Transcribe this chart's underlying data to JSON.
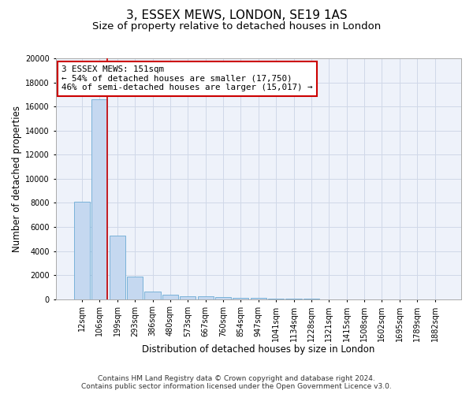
{
  "title_line1": "3, ESSEX MEWS, LONDON, SE19 1AS",
  "title_line2": "Size of property relative to detached houses in London",
  "xlabel": "Distribution of detached houses by size in London",
  "ylabel": "Number of detached properties",
  "bar_color": "#c5d8f0",
  "bar_edge_color": "#6aaad4",
  "categories": [
    "12sqm",
    "106sqm",
    "199sqm",
    "293sqm",
    "386sqm",
    "480sqm",
    "573sqm",
    "667sqm",
    "760sqm",
    "854sqm",
    "947sqm",
    "1041sqm",
    "1134sqm",
    "1228sqm",
    "1321sqm",
    "1415sqm",
    "1508sqm",
    "1602sqm",
    "1695sqm",
    "1789sqm",
    "1882sqm"
  ],
  "values": [
    8100,
    16600,
    5300,
    1850,
    650,
    350,
    270,
    220,
    185,
    120,
    80,
    50,
    30,
    20,
    10,
    5,
    0,
    0,
    0,
    0,
    0
  ],
  "ylim": [
    0,
    20000
  ],
  "yticks": [
    0,
    2000,
    4000,
    6000,
    8000,
    10000,
    12000,
    14000,
    16000,
    18000,
    20000
  ],
  "red_line_x": 1.45,
  "annotation_text": "3 ESSEX MEWS: 151sqm\n← 54% of detached houses are smaller (17,750)\n46% of semi-detached houses are larger (15,017) →",
  "annotation_box_color": "#ffffff",
  "annotation_box_edge": "#cc0000",
  "red_line_color": "#cc0000",
  "grid_color": "#d0d8e8",
  "bg_color": "#eef2fa",
  "footer_line1": "Contains HM Land Registry data © Crown copyright and database right 2024.",
  "footer_line2": "Contains public sector information licensed under the Open Government Licence v3.0.",
  "title_fontsize": 11,
  "subtitle_fontsize": 9.5,
  "axis_label_fontsize": 8.5,
  "tick_fontsize": 7
}
